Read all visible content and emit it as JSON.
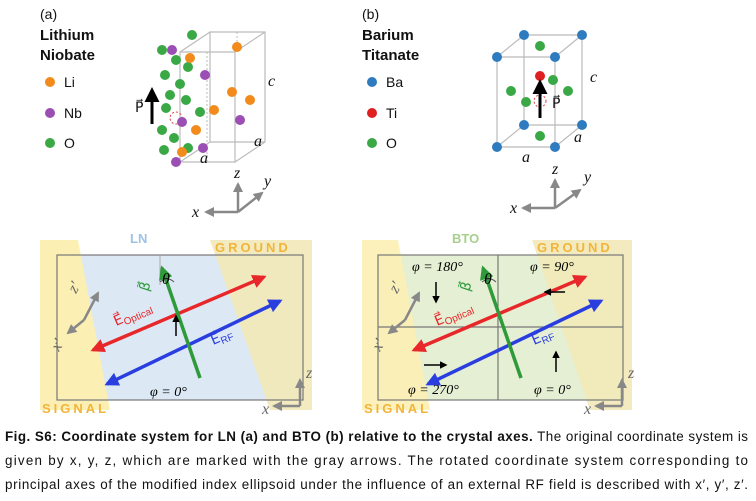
{
  "panel_a": {
    "label": "(a)",
    "title": [
      "Lithium",
      "Niobate"
    ],
    "legend": [
      "Li",
      "Nb",
      "O"
    ],
    "crystal_labels": {
      "polarization": "P⃗",
      "c": "c",
      "a_side": "a",
      "a_front": "a"
    },
    "axes": {
      "z": "z",
      "y": "y",
      "x": "x"
    }
  },
  "panel_b": {
    "label": "(b)",
    "title": [
      "Barium",
      "Titanate"
    ],
    "legend": [
      "Ba",
      "Ti",
      "O"
    ],
    "crystal_labels": {
      "polarization": "P⃗",
      "c": "c",
      "a_side": "a",
      "a_front": "a"
    },
    "axes": {
      "z": "z",
      "y": "y",
      "x": "x"
    }
  },
  "diagram_ln": {
    "title": "LN",
    "ground": "GROUND",
    "signal": "SIGNAL",
    "beta": "β⃗",
    "theta": "θ",
    "e_optical": {
      "symbol": "E⃗",
      "subscript": "Optical"
    },
    "e_rf": {
      "symbol": "E⃗",
      "subscript": "RF"
    },
    "phi": "φ = 0°",
    "rotated_axes": {
      "z": "z′",
      "x": "x′"
    },
    "axes": {
      "z": "z",
      "x": "x"
    }
  },
  "diagram_bto": {
    "title": "BTO",
    "ground": "GROUND",
    "signal": "SIGNAL",
    "beta": "β⃗",
    "theta": "θ",
    "e_optical": {
      "symbol": "E⃗",
      "subscript": "Optical"
    },
    "e_rf": {
      "symbol": "E⃗",
      "subscript": "RF"
    },
    "phi": [
      "φ = 180°",
      "φ = 90°",
      "φ = 270°",
      "φ = 0°"
    ],
    "rotated_axes": {
      "z": "z′",
      "x": "x′"
    },
    "axes": {
      "z": "z",
      "x": "x"
    }
  },
  "caption": {
    "bold": "Fig. S6: Coordinate system for LN (a) and BTO (b) relative to the crystal axes.",
    "lines": [
      " The original coordinate system is",
      "given by x, y, z, which are marked with the gray arrows. The rotated coordinate system corresponding to",
      "principal axes of the modified index ellipsoid under the influence of an external RF field is described with x′, y′, z′."
    ]
  }
}
